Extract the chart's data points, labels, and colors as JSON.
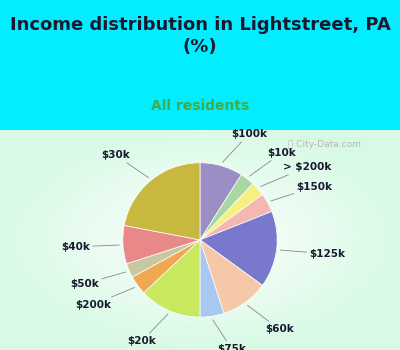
{
  "title": "Income distribution in Lightstreet, PA\n(%)",
  "subtitle": "All residents",
  "labels": [
    "$100k",
    "$10k",
    "> $200k",
    "$150k",
    "$125k",
    "$60k",
    "$75k",
    "$20k",
    "$200k",
    "$50k",
    "$40k",
    "$30k"
  ],
  "sizes": [
    9,
    3,
    3,
    4,
    16,
    10,
    5,
    13,
    4,
    3,
    8,
    22
  ],
  "colors": [
    "#9b8ec4",
    "#a8d8a0",
    "#f5f080",
    "#f5b8b0",
    "#7878cc",
    "#f5c8a8",
    "#a8c8f0",
    "#c8e860",
    "#f0a850",
    "#c8c8a0",
    "#e88888",
    "#c8b840"
  ],
  "bg_cyan": "#00eeff",
  "title_color": "#1a1a2e",
  "subtitle_color": "#44aa44",
  "label_fontsize": 7.5,
  "title_fontsize": 13
}
